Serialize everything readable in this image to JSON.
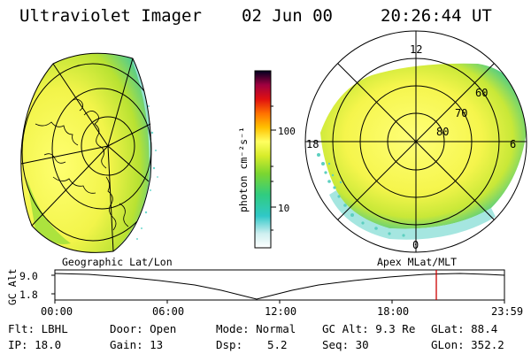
{
  "header": {
    "instrument": "Ultraviolet Imager",
    "date": "02 Jun 00",
    "time": "20:26:44 UT"
  },
  "colorbar": {
    "unit_label": "photon cm⁻²s⁻¹",
    "ticks": [
      "100",
      "10"
    ]
  },
  "left_panel": {
    "label": "Geographic Lat/Lon"
  },
  "right_panel": {
    "label": "Apex MLat/MLT",
    "mlt_labels": [
      "12",
      "18",
      "6",
      "0"
    ],
    "lat_labels": [
      "60",
      "70",
      "80"
    ]
  },
  "altitude_plot": {
    "ylabel": "GC Alt",
    "y_ticks": [
      "9.0",
      "1.8"
    ],
    "x_ticks": [
      "00:00",
      "06:00",
      "12:00",
      "18:00",
      "23:59"
    ],
    "marker_color": "#cc0000"
  },
  "footer": {
    "flt": "Flt: LBHL",
    "ip": "IP: 18.0",
    "door": "Door: Open",
    "gain": "Gain: 13",
    "mode": "Mode: Normal",
    "dsp_label": "Dsp:",
    "dsp_value": "5.2",
    "gc_alt": "GC Alt: 9.3 Re",
    "seq": "Seq: 30",
    "glat": "GLat: 88.4",
    "glon": "GLon: 352.2"
  }
}
